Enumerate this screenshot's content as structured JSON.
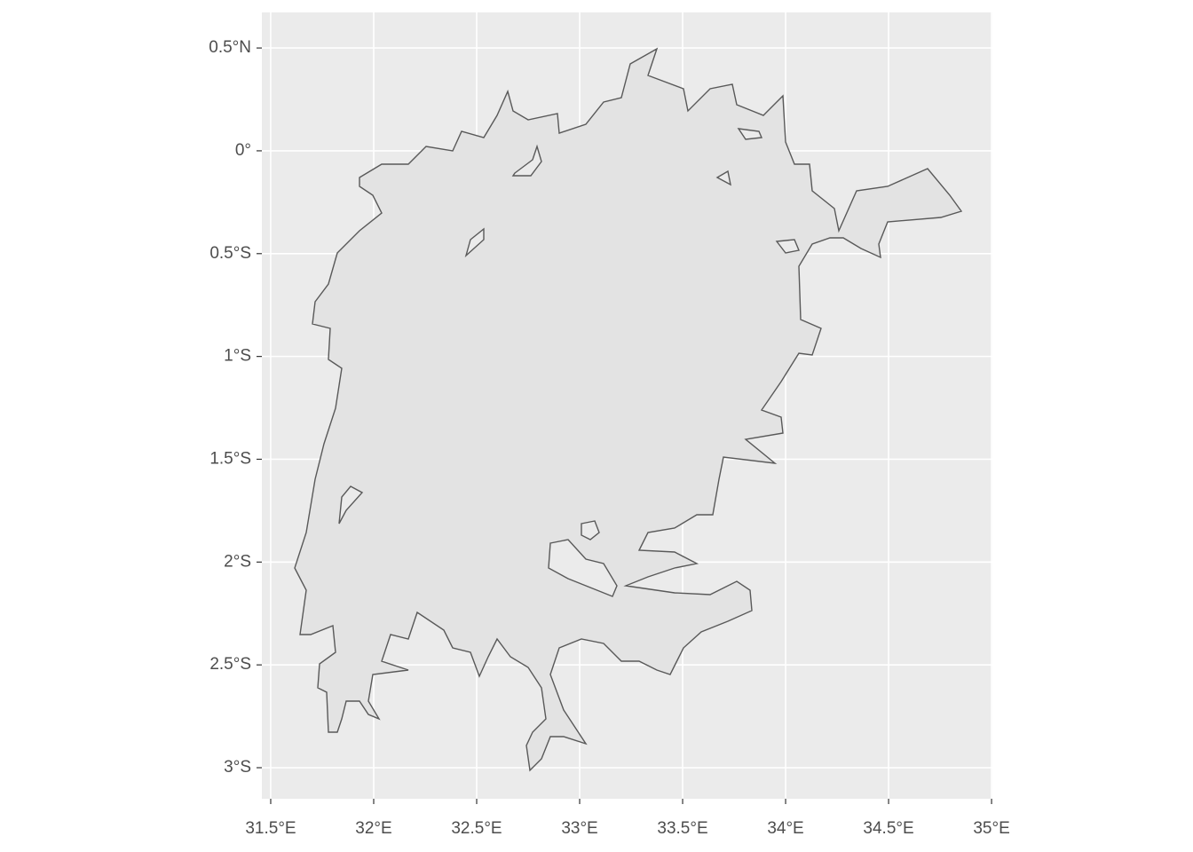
{
  "chart_data": {
    "type": "map",
    "xlim": [
      31.457,
      35.004
    ],
    "ylim": [
      -3.151,
      0.673
    ],
    "xticks": [
      {
        "value": 31.5,
        "label": "31.5°E"
      },
      {
        "value": 32,
        "label": "32°E"
      },
      {
        "value": 32.5,
        "label": "32.5°E"
      },
      {
        "value": 33,
        "label": "33°E"
      },
      {
        "value": 33.5,
        "label": "33.5°E"
      },
      {
        "value": 34,
        "label": "34°E"
      },
      {
        "value": 34.5,
        "label": "34.5°E"
      },
      {
        "value": 35,
        "label": "35°E"
      }
    ],
    "yticks": [
      {
        "value": 0.5,
        "label": "0.5°N"
      },
      {
        "value": 0,
        "label": "0°"
      },
      {
        "value": -0.5,
        "label": "0.5°S"
      },
      {
        "value": -1,
        "label": "1°S"
      },
      {
        "value": -1.5,
        "label": "1.5°S"
      },
      {
        "value": -2,
        "label": "2°S"
      },
      {
        "value": -2.5,
        "label": "2.5°S"
      },
      {
        "value": -3,
        "label": "3°S"
      }
    ],
    "grid": true
  }
}
